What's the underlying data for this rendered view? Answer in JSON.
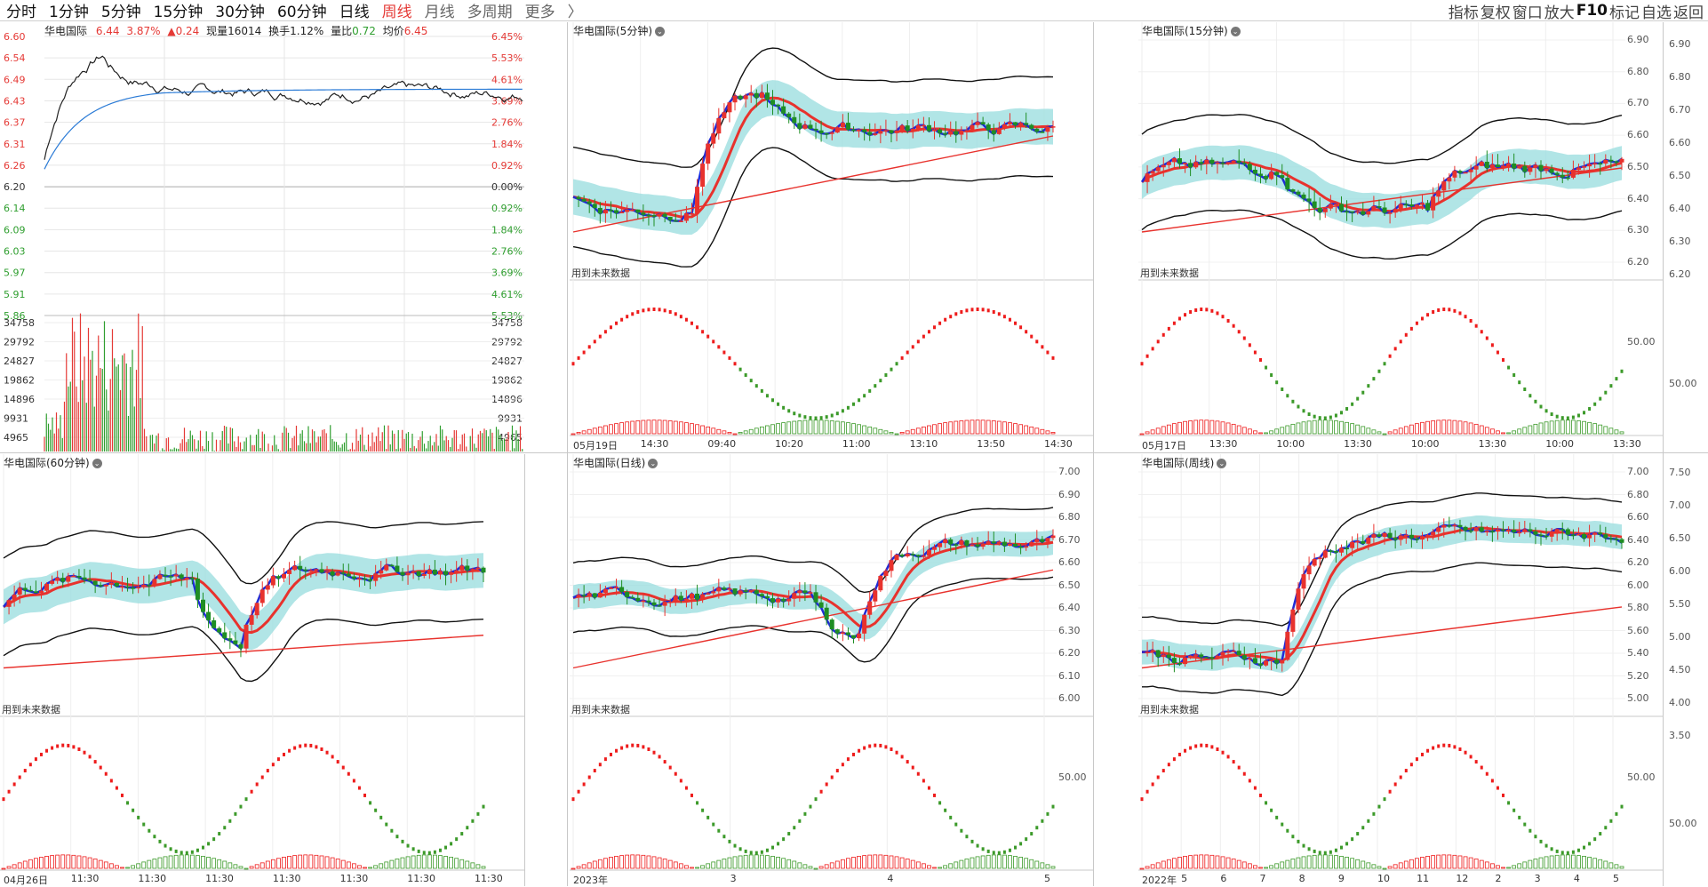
{
  "toolbar": {
    "tabs": [
      {
        "label": "分时",
        "active": false
      },
      {
        "label": "1分钟",
        "active": false
      },
      {
        "label": "5分钟",
        "active": false
      },
      {
        "label": "15分钟",
        "active": false
      },
      {
        "label": "30分钟",
        "active": false
      },
      {
        "label": "60分钟",
        "active": false
      },
      {
        "label": "日线",
        "active": false
      },
      {
        "label": "周线",
        "active": true
      },
      {
        "label": "月线",
        "active": false
      },
      {
        "label": "多周期",
        "active": false
      },
      {
        "label": "更多",
        "active": false
      }
    ],
    "tabs_more_arrow": "〉",
    "right_tools": [
      "指标",
      "复权",
      "窗口",
      "放大",
      "F10",
      "标记",
      "自选",
      "返回"
    ]
  },
  "intraday": {
    "name": "华电国际",
    "price": "6.44",
    "pct": "3.87%",
    "change": "▲0.24",
    "volume_label": "现量",
    "volume": "16014",
    "turnover_label": "换手",
    "turnover": "1.12%",
    "ratio_label": "量比",
    "ratio": "0.72",
    "avg_label": "均价",
    "avg": "6.45",
    "price_levels": [
      "6.60",
      "6.54",
      "6.49",
      "6.43",
      "6.37",
      "6.31",
      "6.26",
      "6.20",
      "6.14",
      "6.09",
      "6.03",
      "5.97",
      "5.91",
      "5.86"
    ],
    "pct_levels": [
      "6.45%",
      "5.53%",
      "4.61%",
      "3.69%",
      "2.76%",
      "1.84%",
      "0.92%",
      "0.00%",
      "0.92%",
      "1.84%",
      "2.76%",
      "3.69%",
      "4.61%",
      "5.53%"
    ],
    "vol_levels": [
      "34758",
      "29792",
      "24827",
      "19862",
      "14896",
      "9931",
      "4965"
    ],
    "prev_close": 6.2,
    "colors": {
      "up": "#e53935",
      "down": "#2e9e2e",
      "price": "#222222",
      "avg": "#2b7bd6"
    }
  },
  "panels": [
    {
      "id": "p5",
      "title": "华电国际(5分钟)",
      "future": "用到未来数据",
      "axis": [],
      "dates": [
        "05月19日",
        "14:30",
        "09:40",
        "10:20",
        "11:00",
        "13:10",
        "13:50",
        "14:30"
      ],
      "osc_label": ""
    },
    {
      "id": "p15",
      "title": "华电国际(15分钟)",
      "future": "用到未来数据",
      "axis": [
        "6.90",
        "6.80",
        "6.70",
        "6.60",
        "6.50",
        "6.40",
        "6.30",
        "6.20"
      ],
      "dates": [
        "05月17日",
        "13:30",
        "10:00",
        "13:30",
        "10:00",
        "13:30",
        "10:00",
        "13:30"
      ],
      "osc_label": "50.00"
    },
    {
      "id": "p60",
      "title": "华电国际(60分钟)",
      "future": "用到未来数据",
      "axis": [],
      "dates": [
        "04月26日",
        "11:30",
        "11:30",
        "11:30",
        "11:30",
        "11:30",
        "11:30",
        "11:30"
      ],
      "osc_label": ""
    },
    {
      "id": "pday",
      "title": "华电国际(日线)",
      "future": "用到未来数据",
      "axis": [
        "7.00",
        "6.90",
        "6.80",
        "6.70",
        "6.60",
        "6.50",
        "6.40",
        "6.30",
        "6.20",
        "6.10",
        "6.00"
      ],
      "dates": [
        "2023年",
        "3",
        "4",
        "5"
      ],
      "osc_label": "50.00"
    },
    {
      "id": "pweek",
      "title": "华电国际(周线)",
      "future": "用到未来数据",
      "axis": [
        "7.00",
        "6.80",
        "6.60",
        "6.40",
        "6.20",
        "6.00",
        "5.80",
        "5.60",
        "5.40",
        "5.20",
        "5.00"
      ],
      "dates": [
        "2022年",
        "5",
        "6",
        "7",
        "8",
        "9",
        "10",
        "11",
        "12",
        "2",
        "3",
        "4",
        "5"
      ],
      "osc_label": "50.00"
    }
  ],
  "right_axis": {
    "top": [
      "6.90",
      "6.80",
      "6.70",
      "6.60",
      "6.50",
      "6.40",
      "6.30",
      "6.20"
    ],
    "top_osc": "50.00",
    "bottom": [
      "7.50",
      "7.00",
      "6.50",
      "6.00",
      "5.50",
      "5.00",
      "4.50",
      "4.00",
      "3.50"
    ],
    "bottom_osc": "50.00"
  },
  "colors": {
    "up": "#e8322d",
    "down": "#1f8e24",
    "ma_blue": "#1f2bd6",
    "ma_red": "#e8322d",
    "band": "#9edfe0",
    "band_green": "#7ccf72",
    "osc_red": "#ee1c1c",
    "osc_green": "#3c9a2a"
  }
}
